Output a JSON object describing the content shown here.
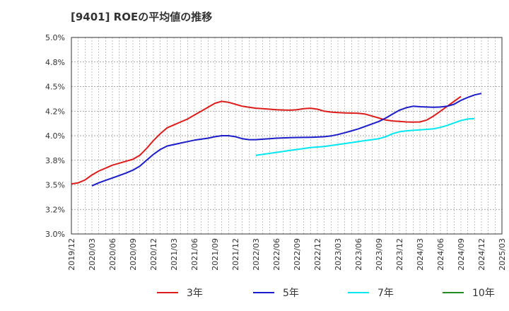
{
  "chart_data": {
    "type": "line",
    "title": "[9401]  ROEの平均値の推移",
    "xlabel": "",
    "ylabel": "",
    "ylim": [
      3.0,
      5.0
    ],
    "y_ticks": [
      "3.0%",
      "3.2%",
      "3.5%",
      "3.8%",
      "4.0%",
      "4.2%",
      "4.5%",
      "4.8%",
      "5.0%"
    ],
    "x_ticks": [
      "2019/12",
      "2020/03",
      "2020/06",
      "2020/09",
      "2020/12",
      "2021/03",
      "2021/06",
      "2021/09",
      "2021/12",
      "2022/03",
      "2022/06",
      "2022/09",
      "2022/12",
      "2023/03",
      "2023/06",
      "2023/09",
      "2023/12",
      "2024/03",
      "2024/06",
      "2024/09",
      "2024/12",
      "2025/03"
    ],
    "x_start": "2019/12",
    "legend_position": "bottom",
    "series": [
      {
        "name": "3年",
        "color": "#dd1c1c",
        "start_index": 0,
        "values": [
          3.51,
          3.52,
          3.55,
          3.6,
          3.64,
          3.67,
          3.7,
          3.72,
          3.74,
          3.76,
          3.8,
          3.87,
          3.95,
          4.02,
          4.08,
          4.11,
          4.14,
          4.17,
          4.21,
          4.25,
          4.29,
          4.33,
          4.35,
          4.34,
          4.32,
          4.3,
          4.29,
          4.28,
          4.275,
          4.27,
          4.265,
          4.262,
          4.26,
          4.265,
          4.275,
          4.28,
          4.27,
          4.25,
          4.24,
          4.235,
          4.232,
          4.23,
          4.228,
          4.22,
          4.2,
          4.18,
          4.16,
          4.15,
          4.145,
          4.14,
          4.138,
          4.14,
          4.16,
          4.2,
          4.25,
          4.3,
          4.35,
          4.4
        ]
      },
      {
        "name": "5年",
        "color": "#1c1cc8",
        "start_index": 3,
        "values": [
          3.49,
          3.52,
          3.545,
          3.57,
          3.595,
          3.62,
          3.65,
          3.69,
          3.75,
          3.81,
          3.86,
          3.895,
          3.91,
          3.925,
          3.94,
          3.955,
          3.965,
          3.975,
          3.99,
          4.0,
          4.0,
          3.99,
          3.97,
          3.96,
          3.96,
          3.965,
          3.97,
          3.975,
          3.978,
          3.98,
          3.982,
          3.983,
          3.984,
          3.986,
          3.99,
          3.998,
          4.012,
          4.03,
          4.05,
          4.07,
          4.095,
          4.12,
          4.145,
          4.18,
          4.22,
          4.26,
          4.285,
          4.3,
          4.295,
          4.292,
          4.29,
          4.292,
          4.3,
          4.32,
          4.36,
          4.39,
          4.415,
          4.43
        ]
      },
      {
        "name": "7年",
        "color": "#00e8ee",
        "start_index": 27,
        "values": [
          3.8,
          3.81,
          3.82,
          3.83,
          3.84,
          3.85,
          3.86,
          3.87,
          3.88,
          3.885,
          3.89,
          3.9,
          3.91,
          3.92,
          3.93,
          3.94,
          3.95,
          3.96,
          3.97,
          3.99,
          4.02,
          4.04,
          4.05,
          4.055,
          4.06,
          4.065,
          4.07,
          4.085,
          4.105,
          4.13,
          4.155,
          4.17,
          4.175
        ]
      },
      {
        "name": "10年",
        "color": "#228b22",
        "start_index": 0,
        "values": []
      }
    ]
  }
}
